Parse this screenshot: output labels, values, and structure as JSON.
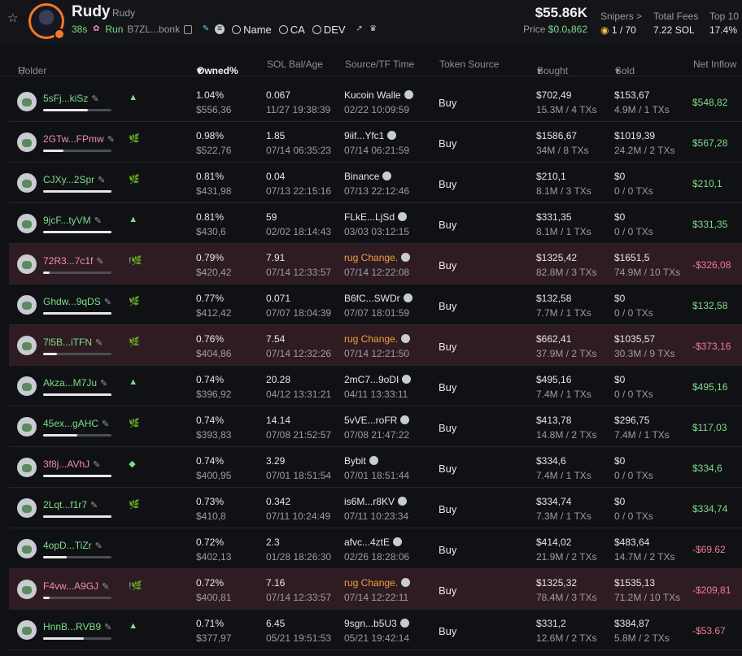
{
  "header": {
    "name": "Rudy",
    "ticker": "Rudy",
    "age": "38s",
    "run_label": "Run",
    "address": "B7ZL...bonk",
    "chips": [
      "Name",
      "CA",
      "DEV"
    ],
    "market_cap": "$55.86K",
    "price_label": "Price",
    "price_value": "$0.0₅862",
    "snipers_label": "Snipers >",
    "snipers_value": "1 / 70",
    "total_fees_label": "Total Fees",
    "total_fees_value": "7.22 SOL",
    "top10_label": "Top 10",
    "top10_value": "17.4%"
  },
  "columns": {
    "holder": "Holder",
    "owned": "Owned%",
    "sol_bal": "SOL Bal/Age",
    "source": "Source/TF Time",
    "token_source": "Token Source",
    "bought": "Bought",
    "sold": "Sold",
    "net_inflow": "Net Inflow"
  },
  "rows": [
    {
      "addr": "5sFj...kiSz",
      "owned": "1.04%",
      "owned_usd": "$556,36",
      "bal": "0.067",
      "age": "11/27 19:38:39",
      "src": "Kucoin Wallе",
      "src_time": "02/22 10:09:59",
      "token_src": "Buy",
      "bought": "$702,49",
      "bought_sub": "15.3M / 4 TXs",
      "sold": "$153,67",
      "sold_sub": "4.9M / 1 TXs",
      "net": "$548,82",
      "fill": 0.65
    },
    {
      "addr": "2GTw...FPmw",
      "owned": "0.98%",
      "owned_usd": "$522,76",
      "bal": "1.85",
      "age": "07/14 06:35:23",
      "src": "9iif...Yfc1",
      "src_time": "07/14 06:21:59",
      "token_src": "Buy",
      "bought": "$1586,67",
      "bought_sub": "34M / 8 TXs",
      "sold": "$1019,39",
      "sold_sub": "24.2M / 2 TXs",
      "net": "$567,28",
      "fill": 0.3
    },
    {
      "addr": "CJXy...2Spr",
      "owned": "0.81%",
      "owned_usd": "$431,98",
      "bal": "0.04",
      "age": "07/13 22:15:16",
      "src": "Binance",
      "src_time": "07/13 22:12:46",
      "token_src": "Buy",
      "bought": "$210,1",
      "bought_sub": "8.1M / 3 TXs",
      "sold": "$0",
      "sold_sub": "0 / 0 TXs",
      "net": "$210,1",
      "fill": 1.0
    },
    {
      "addr": "9jcF...tyVM",
      "owned": "0.81%",
      "owned_usd": "$430,6",
      "bal": "59",
      "age": "02/02 18:14:43",
      "src": "FLkE...LjSd",
      "src_time": "03/03 03:12:15",
      "token_src": "Buy",
      "bought": "$331,35",
      "bought_sub": "8.1M / 1 TXs",
      "sold": "$0",
      "sold_sub": "0 / 0 TXs",
      "net": "$331,35",
      "fill": 1.0
    },
    {
      "addr": "72R3...7c1f",
      "owned": "0.79%",
      "owned_usd": "$420,42",
      "bal": "7.91",
      "age": "07/14 12:33:57",
      "src": "rug Change.",
      "src_time": "07/14 12:22:08",
      "token_src": "Buy",
      "bought": "$1325,42",
      "bought_sub": "82.8M / 3 TXs",
      "sold": "$1651,5",
      "sold_sub": "74.9M / 10 TXs",
      "net": "-$326,08",
      "fill": 0.1
    },
    {
      "addr": "Ghdw...9qDS",
      "owned": "0.77%",
      "owned_usd": "$412,42",
      "bal": "0.071",
      "age": "07/07 18:04:39",
      "src": "B6fC...SWDr",
      "src_time": "07/07 18:01:59",
      "token_src": "Buy",
      "bought": "$132,58",
      "bought_sub": "7.7M / 1 TXs",
      "sold": "$0",
      "sold_sub": "0 / 0 TXs",
      "net": "$132,58",
      "fill": 1.0
    },
    {
      "addr": "7l5B...iTFN",
      "owned": "0.76%",
      "owned_usd": "$404,86",
      "bal": "7.54",
      "age": "07/14 12:32:26",
      "src": "rug Change.",
      "src_time": "07/14 12:21:50",
      "token_src": "Buy",
      "bought": "$662,41",
      "bought_sub": "37.9M / 2 TXs",
      "sold": "$1035,57",
      "sold_sub": "30.3M / 9 TXs",
      "net": "-$373,16",
      "fill": 0.2
    },
    {
      "addr": "Akza...M7Ju",
      "owned": "0.74%",
      "owned_usd": "$396,92",
      "bal": "20.28",
      "age": "04/12 13:31:21",
      "src": "2mC7...9oDI",
      "src_time": "04/11 13:33:11",
      "token_src": "Buy",
      "bought": "$495,16",
      "bought_sub": "7.4M / 1 TXs",
      "sold": "$0",
      "sold_sub": "0 / 0 TXs",
      "net": "$495,16",
      "fill": 1.0
    },
    {
      "addr": "45ex...gAHC",
      "owned": "0.74%",
      "owned_usd": "$393,83",
      "bal": "14.14",
      "age": "07/08 21:52:57",
      "src": "5vVE...roFR",
      "src_time": "07/08 21:47:22",
      "token_src": "Buy",
      "bought": "$413,78",
      "bought_sub": "14.8M / 2 TXs",
      "sold": "$296,75",
      "sold_sub": "7.4M / 1 TXs",
      "net": "$117,03",
      "fill": 0.5
    },
    {
      "addr": "3f8j...AVhJ",
      "owned": "0.74%",
      "owned_usd": "$400,95",
      "bal": "3.29",
      "age": "07/01 18:51:54",
      "src": "Bybit",
      "src_time": "07/01 18:51:44",
      "token_src": "Buy",
      "bought": "$334,6",
      "bought_sub": "7.4M / 1 TXs",
      "sold": "$0",
      "sold_sub": "0 / 0 TXs",
      "net": "$334,6",
      "fill": 1.0
    },
    {
      "addr": "2Lqt...f1r7",
      "owned": "0.73%",
      "owned_usd": "$410,8",
      "bal": "0.342",
      "age": "07/11 10:24:49",
      "src": "is6M...r8KV",
      "src_time": "07/11 10:23:34",
      "token_src": "Buy",
      "bought": "$334,74",
      "bought_sub": "7.3M / 1 TXs",
      "sold": "$0",
      "sold_sub": "0 / 0 TXs",
      "net": "$334,74",
      "fill": 1.0
    },
    {
      "addr": "4opD...TiZr",
      "owned": "0.72%",
      "owned_usd": "$402,13",
      "bal": "2.3",
      "age": "01/28 18:26:30",
      "src": "afvc...4ztE",
      "src_time": "02/26 18:28:06",
      "token_src": "Buy",
      "bought": "$414,02",
      "bought_sub": "21.9M / 2 TXs",
      "sold": "$483,64",
      "sold_sub": "14.7M / 2 TXs",
      "net": "-$69.62",
      "fill": 0.35
    },
    {
      "addr": "F4vw...A9GJ",
      "owned": "0.72%",
      "owned_usd": "$400,81",
      "bal": "7.16",
      "age": "07/14 12:33:57",
      "src": "rug Change.",
      "src_time": "07/14 12:22:11",
      "token_src": "Buy",
      "bought": "$1325,32",
      "bought_sub": "78.4M / 3 TXs",
      "sold": "$1535,13",
      "sold_sub": "71.2M / 10 TXs",
      "net": "-$209,81",
      "fill": 0.1
    },
    {
      "addr": "HnnB...RVB9",
      "owned": "0.71%",
      "owned_usd": "$377,97",
      "bal": "6.45",
      "age": "05/21 19:51:53",
      "src": "9sgn...b5U3",
      "src_time": "05/21 19:42:14",
      "token_src": "Buy",
      "bought": "$331,2",
      "bought_sub": "12.6M / 2 TXs",
      "sold": "$384,87",
      "sold_sub": "5.8M / 2 TXs",
      "net": "-$53.67",
      "fill": 0.6
    }
  ]
}
